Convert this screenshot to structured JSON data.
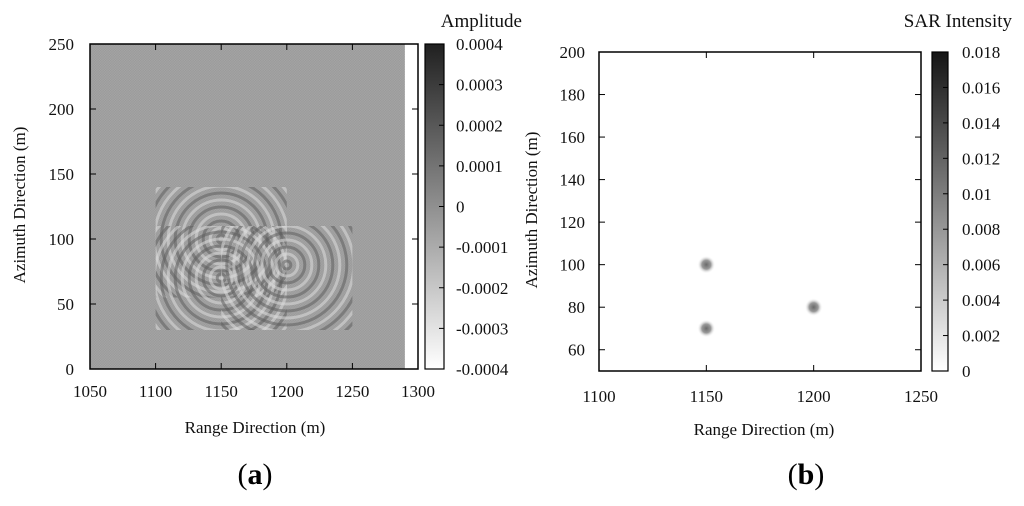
{
  "chart_data": [
    {
      "type": "heatmap",
      "panel_label": "a",
      "colorbar_title": "Amplitude",
      "xlabel": "Range Direction (m)",
      "ylabel": "Azimuth Direction (m)",
      "xlim": [
        1050,
        1300
      ],
      "ylim": [
        0,
        250
      ],
      "x_ticks": [
        "1050",
        "1100",
        "1150",
        "1200",
        "1250",
        "1300"
      ],
      "y_ticks": [
        "0",
        "50",
        "100",
        "150",
        "200",
        "250"
      ],
      "colorbar_range": [
        -0.0004,
        0.0004
      ],
      "colorbar_ticks": [
        "0.0004",
        "0.0003",
        "0.0002",
        "0.0001",
        "0",
        "-0.0001",
        "-0.0002",
        "-0.0003",
        "-0.0004"
      ],
      "colormap": "grayscale (white = low, black = high)",
      "background_value": 0,
      "data_extent": {
        "x": [
          1050,
          1290
        ],
        "y": [
          0,
          250
        ]
      },
      "features": [
        {
          "kind": "ring-pattern",
          "center_x": 1150,
          "center_y": 100,
          "region_x": [
            1100,
            1200
          ],
          "region_y": [
            55,
            140
          ]
        },
        {
          "kind": "ring-pattern",
          "center_x": 1150,
          "center_y": 70,
          "region_x": [
            1100,
            1200
          ],
          "region_y": [
            30,
            110
          ]
        },
        {
          "kind": "ring-pattern",
          "center_x": 1200,
          "center_y": 80,
          "region_x": [
            1150,
            1250
          ],
          "region_y": [
            30,
            110
          ]
        }
      ]
    },
    {
      "type": "heatmap",
      "panel_label": "b",
      "colorbar_title": "SAR Intensity",
      "xlabel": "Range Direction (m)",
      "ylabel": "Azimuth Direction (m)",
      "xlim": [
        1100,
        1250
      ],
      "ylim": [
        50,
        200
      ],
      "x_ticks": [
        "1100",
        "1150",
        "1200",
        "1250"
      ],
      "y_ticks": [
        "60",
        "80",
        "100",
        "120",
        "140",
        "160",
        "180",
        "200"
      ],
      "colorbar_range": [
        0,
        0.018
      ],
      "colorbar_ticks": [
        "0.018",
        "0.016",
        "0.014",
        "0.012",
        "0.01",
        "0.008",
        "0.006",
        "0.004",
        "0.002",
        "0"
      ],
      "colormap": "grayscale (white = low, black = high)",
      "background_value": 0,
      "points": [
        {
          "x": 1150,
          "y": 100,
          "intensity": 0.008
        },
        {
          "x": 1150,
          "y": 70,
          "intensity": 0.008
        },
        {
          "x": 1200,
          "y": 80,
          "intensity": 0.008
        }
      ]
    }
  ]
}
